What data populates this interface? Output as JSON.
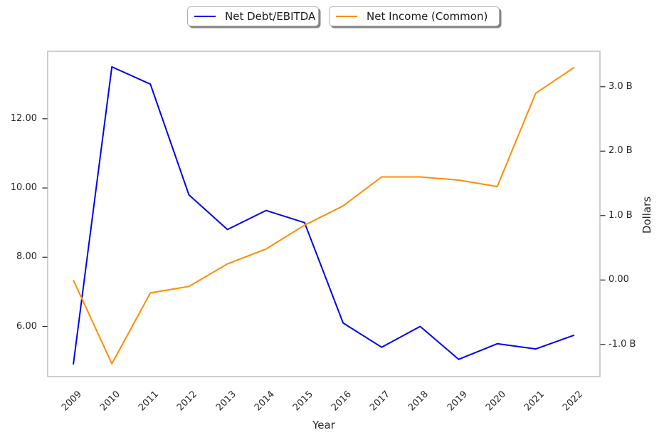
{
  "legend": {
    "items": [
      {
        "label": "Net Debt/EBITDA",
        "color": "#0000ee"
      },
      {
        "label": "Net Income (Common)",
        "color": "#ff8c00"
      }
    ]
  },
  "chart_data": {
    "type": "line",
    "x": [
      "2009",
      "2010",
      "2011",
      "2012",
      "2013",
      "2014",
      "2015",
      "2016",
      "2017",
      "2018",
      "2019",
      "2020",
      "2021",
      "2022"
    ],
    "series": [
      {
        "name": "Net Debt/EBITDA",
        "axis": "left",
        "color": "#0000ee",
        "values": [
          4.9,
          13.5,
          13.0,
          9.8,
          8.8,
          9.35,
          9.0,
          6.1,
          5.4,
          6.0,
          5.05,
          5.5,
          5.35,
          5.75
        ]
      },
      {
        "name": "Net Income (Common)",
        "axis": "right",
        "color": "#ff8c00",
        "values": [
          0.0,
          -1.3,
          -0.2,
          -0.1,
          0.25,
          0.48,
          0.85,
          1.15,
          1.6,
          1.6,
          1.55,
          1.45,
          2.9,
          3.3
        ]
      }
    ],
    "xlabel": "Year",
    "ylabel_right": "Dollars",
    "left_axis": {
      "tick_values": [
        6,
        8,
        10,
        12
      ],
      "tick_labels": [
        "6.00",
        "8.00",
        "10.00",
        "12.00"
      ],
      "ylim": [
        4.55,
        13.95
      ]
    },
    "right_axis": {
      "tick_values": [
        -1,
        0,
        1,
        2,
        3
      ],
      "tick_labels": [
        "-1.0 B",
        "0.00",
        "1.0 B",
        "2.0 B",
        "3.0 B"
      ],
      "ylim": [
        -1.5,
        3.55
      ]
    },
    "grid": false,
    "legend_position": "top-center"
  }
}
